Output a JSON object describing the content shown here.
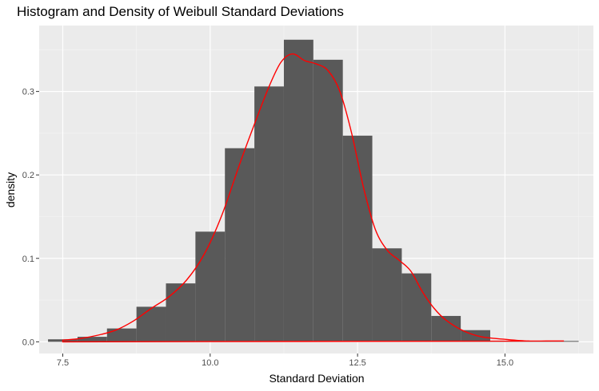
{
  "chart_data": {
    "type": "bar",
    "title": "Histogram and Density of Weibull Standard Deviations",
    "xlabel": "Standard Deviation",
    "ylabel": "density",
    "xlim": [
      7.1,
      16.5
    ],
    "ylim": [
      -0.014,
      0.379
    ],
    "x_ticks": [
      7.5,
      10.0,
      12.5,
      15.0
    ],
    "x_tick_labels": [
      "7.5",
      "10.0",
      "12.5",
      "15.0"
    ],
    "x_minor_ticks": [
      8.75,
      11.25,
      13.75,
      16.25
    ],
    "y_ticks": [
      0.0,
      0.1,
      0.2,
      0.3
    ],
    "y_tick_labels": [
      "0.0",
      "0.1",
      "0.2",
      "0.3"
    ],
    "y_minor_ticks": [
      0.05,
      0.15,
      0.25,
      0.35
    ],
    "grid": true,
    "background": "#ebebeb",
    "bar_color": "#595959",
    "density_color": "#ff0000",
    "histogram": {
      "bin_width": 0.5,
      "bins": [
        {
          "x0": 7.25,
          "x1": 7.75,
          "density": 0.003
        },
        {
          "x0": 7.75,
          "x1": 8.25,
          "density": 0.006
        },
        {
          "x0": 8.25,
          "x1": 8.75,
          "density": 0.016
        },
        {
          "x0": 8.75,
          "x1": 9.25,
          "density": 0.042
        },
        {
          "x0": 9.25,
          "x1": 9.75,
          "density": 0.07
        },
        {
          "x0": 9.75,
          "x1": 10.25,
          "density": 0.132
        },
        {
          "x0": 10.25,
          "x1": 10.75,
          "density": 0.232
        },
        {
          "x0": 10.75,
          "x1": 11.25,
          "density": 0.306
        },
        {
          "x0": 11.25,
          "x1": 11.75,
          "density": 0.362
        },
        {
          "x0": 11.75,
          "x1": 12.25,
          "density": 0.338
        },
        {
          "x0": 12.25,
          "x1": 12.75,
          "density": 0.247
        },
        {
          "x0": 12.75,
          "x1": 13.25,
          "density": 0.112
        },
        {
          "x0": 13.25,
          "x1": 13.75,
          "density": 0.082
        },
        {
          "x0": 13.75,
          "x1": 14.25,
          "density": 0.031
        },
        {
          "x0": 14.25,
          "x1": 14.75,
          "density": 0.014
        },
        {
          "x0": 14.75,
          "x1": 15.25,
          "density": 0.001
        },
        {
          "x0": 15.25,
          "x1": 15.75,
          "density": 0.001
        },
        {
          "x0": 15.75,
          "x1": 16.25,
          "density": 0.001
        }
      ]
    },
    "density_curve": {
      "x": [
        7.5,
        7.8,
        8.1,
        8.4,
        8.7,
        9.0,
        9.3,
        9.6,
        9.9,
        10.2,
        10.5,
        10.8,
        11.0,
        11.2,
        11.4,
        11.6,
        11.8,
        12.0,
        12.2,
        12.4,
        12.6,
        12.8,
        13.0,
        13.2,
        13.4,
        13.6,
        13.8,
        14.0,
        14.3,
        14.6,
        15.0,
        15.4,
        15.8,
        16.0
      ],
      "y": [
        0.002,
        0.004,
        0.008,
        0.014,
        0.025,
        0.04,
        0.054,
        0.074,
        0.105,
        0.152,
        0.213,
        0.27,
        0.306,
        0.335,
        0.345,
        0.337,
        0.333,
        0.325,
        0.3,
        0.25,
        0.185,
        0.135,
        0.11,
        0.098,
        0.085,
        0.06,
        0.04,
        0.026,
        0.013,
        0.006,
        0.003,
        0.001,
        0.001,
        0.001
      ]
    }
  }
}
